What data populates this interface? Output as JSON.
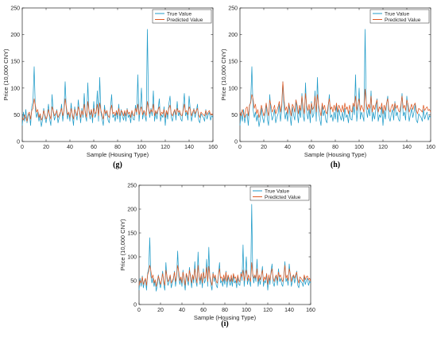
{
  "chart_data": [
    {
      "type": "line",
      "panel_label": "(g)",
      "xlabel": "Sample (Housing Type)",
      "ylabel": "Price (10,000 CNY)",
      "xlim": [
        0,
        160
      ],
      "ylim": [
        0,
        250
      ],
      "xticks": [
        0,
        20,
        40,
        60,
        80,
        100,
        120,
        140,
        160
      ],
      "yticks": [
        0,
        50,
        100,
        150,
        200,
        250
      ],
      "legend_position": "top-right",
      "series": [
        {
          "name": "True Value",
          "color": "#1f9bc8",
          "values": [
            30,
            55,
            38,
            60,
            35,
            48,
            52,
            30,
            65,
            75,
            140,
            60,
            45,
            55,
            38,
            50,
            28,
            40,
            62,
            45,
            35,
            50,
            70,
            42,
            30,
            88,
            55,
            40,
            48,
            60,
            35,
            45,
            52,
            70,
            38,
            58,
            112,
            60,
            42,
            55,
            38,
            72,
            48,
            30,
            65,
            50,
            40,
            78,
            55,
            35,
            62,
            45,
            90,
            48,
            38,
            110,
            55,
            42,
            60,
            35,
            75,
            45,
            52,
            95,
            38,
            120,
            55,
            42,
            30,
            68,
            48,
            58,
            40,
            35,
            62,
            88,
            45,
            50,
            38,
            55,
            42,
            70,
            36,
            60,
            48,
            40,
            55,
            38,
            62,
            45,
            50,
            35,
            58,
            42,
            40,
            68,
            50,
            125,
            38,
            60,
            100,
            42,
            55,
            48,
            38,
            210,
            60,
            45,
            62,
            48,
            95,
            38,
            55,
            42,
            60,
            80,
            38,
            50,
            45,
            65,
            30,
            58,
            42,
            70,
            85,
            45,
            38,
            52,
            60,
            40,
            75,
            48,
            55,
            42,
            38,
            62,
            90,
            48,
            55,
            40,
            85,
            60,
            38,
            50,
            62,
            45,
            55,
            70,
            40,
            35,
            52,
            48,
            45,
            38,
            60,
            42,
            50,
            55,
            40,
            48,
            45
          ]
        },
        {
          "name": "Predicted Value",
          "color": "#e05a24",
          "values": [
            45,
            40,
            50,
            45,
            38,
            52,
            55,
            42,
            58,
            62,
            80,
            68,
            55,
            60,
            45,
            52,
            40,
            45,
            58,
            50,
            42,
            48,
            60,
            50,
            42,
            65,
            58,
            48,
            52,
            58,
            45,
            50,
            55,
            62,
            48,
            58,
            80,
            65,
            50,
            55,
            45,
            62,
            52,
            42,
            60,
            55,
            48,
            65,
            58,
            45,
            58,
            50,
            70,
            55,
            45,
            75,
            58,
            50,
            60,
            45,
            62,
            52,
            55,
            70,
            48,
            72,
            58,
            50,
            42,
            60,
            52,
            58,
            48,
            45,
            58,
            68,
            52,
            55,
            48,
            58,
            50,
            62,
            48,
            58,
            55,
            48,
            58,
            48,
            60,
            52,
            55,
            45,
            58,
            50,
            48,
            62,
            55,
            70,
            50,
            60,
            65,
            50,
            58,
            55,
            48,
            75,
            62,
            52,
            60,
            55,
            70,
            48,
            58,
            52,
            60,
            65,
            48,
            55,
            52,
            60,
            45,
            58,
            50,
            62,
            68,
            52,
            48,
            55,
            60,
            50,
            62,
            55,
            58,
            50,
            48,
            58,
            70,
            55,
            58,
            50,
            65,
            60,
            48,
            55,
            60,
            52,
            58,
            62,
            50,
            45,
            55,
            52,
            50,
            48,
            58,
            50,
            55,
            58,
            50,
            52,
            50
          ]
        }
      ]
    },
    {
      "type": "line",
      "panel_label": "(h)",
      "xlabel": "Sample (Housing Type)",
      "ylabel": "Price (10,000 CNY)",
      "xlim": [
        0,
        160
      ],
      "ylim": [
        0,
        250
      ],
      "xticks": [
        0,
        20,
        40,
        60,
        80,
        100,
        120,
        140,
        160
      ],
      "yticks": [
        0,
        50,
        100,
        150,
        200,
        250
      ],
      "legend_position": "top-right",
      "series": [
        {
          "name": "True Value",
          "color": "#1f9bc8",
          "values": [
            30,
            55,
            38,
            60,
            35,
            48,
            52,
            30,
            65,
            75,
            140,
            60,
            45,
            55,
            38,
            50,
            28,
            40,
            62,
            45,
            35,
            50,
            70,
            42,
            30,
            88,
            55,
            40,
            48,
            60,
            35,
            45,
            52,
            70,
            38,
            58,
            112,
            60,
            42,
            55,
            38,
            72,
            48,
            30,
            65,
            50,
            40,
            78,
            55,
            35,
            62,
            45,
            90,
            48,
            38,
            110,
            55,
            42,
            60,
            35,
            75,
            45,
            52,
            95,
            38,
            120,
            55,
            42,
            30,
            68,
            48,
            58,
            40,
            35,
            62,
            88,
            45,
            50,
            38,
            55,
            42,
            70,
            36,
            60,
            48,
            40,
            55,
            38,
            62,
            45,
            50,
            35,
            58,
            42,
            40,
            68,
            50,
            125,
            38,
            60,
            100,
            42,
            55,
            48,
            38,
            210,
            60,
            45,
            62,
            48,
            95,
            38,
            55,
            42,
            60,
            80,
            38,
            50,
            45,
            65,
            30,
            58,
            42,
            70,
            85,
            45,
            38,
            52,
            60,
            40,
            75,
            48,
            55,
            42,
            38,
            62,
            90,
            48,
            55,
            40,
            85,
            60,
            38,
            50,
            62,
            45,
            55,
            70,
            40,
            35,
            52,
            48,
            45,
            38,
            60,
            42,
            50,
            55,
            40,
            48,
            45
          ]
        },
        {
          "name": "Predicted Value",
          "color": "#e05a24",
          "values": [
            55,
            48,
            60,
            52,
            45,
            62,
            65,
            48,
            68,
            72,
            88,
            80,
            62,
            70,
            52,
            60,
            45,
            52,
            68,
            58,
            48,
            55,
            72,
            58,
            48,
            78,
            68,
            55,
            60,
            68,
            52,
            58,
            65,
            75,
            55,
            68,
            112,
            78,
            58,
            65,
            52,
            72,
            60,
            48,
            70,
            65,
            55,
            78,
            68,
            52,
            68,
            58,
            85,
            65,
            52,
            90,
            68,
            58,
            70,
            52,
            72,
            60,
            65,
            85,
            55,
            88,
            68,
            58,
            48,
            72,
            60,
            68,
            55,
            52,
            68,
            80,
            60,
            65,
            55,
            68,
            58,
            72,
            55,
            68,
            62,
            55,
            68,
            55,
            72,
            60,
            65,
            52,
            68,
            58,
            55,
            72,
            65,
            85,
            58,
            70,
            80,
            58,
            68,
            62,
            55,
            98,
            72,
            60,
            70,
            62,
            85,
            55,
            68,
            60,
            70,
            78,
            55,
            65,
            60,
            72,
            52,
            68,
            58,
            72,
            80,
            60,
            55,
            65,
            70,
            58,
            72,
            62,
            68,
            58,
            55,
            68,
            85,
            62,
            68,
            58,
            78,
            70,
            55,
            62,
            70,
            60,
            68,
            72,
            58,
            52,
            62,
            60,
            58,
            55,
            68,
            58,
            62,
            65,
            58,
            60,
            55
          ]
        }
      ]
    },
    {
      "type": "line",
      "panel_label": "(i)",
      "xlabel": "Sample (Housing Type)",
      "ylabel": "Price (10,000 CNY)",
      "xlim": [
        0,
        160
      ],
      "ylim": [
        0,
        250
      ],
      "xticks": [
        0,
        20,
        40,
        60,
        80,
        100,
        120,
        140,
        160
      ],
      "yticks": [
        0,
        50,
        100,
        150,
        200,
        250
      ],
      "legend_position": "top-right",
      "series": [
        {
          "name": "True Value",
          "color": "#1f9bc8",
          "values": [
            30,
            55,
            38,
            60,
            35,
            48,
            52,
            30,
            65,
            75,
            140,
            60,
            45,
            55,
            38,
            50,
            28,
            40,
            62,
            45,
            35,
            50,
            70,
            42,
            30,
            88,
            55,
            40,
            48,
            60,
            35,
            45,
            52,
            70,
            38,
            58,
            112,
            60,
            42,
            55,
            38,
            72,
            48,
            30,
            65,
            50,
            40,
            78,
            55,
            35,
            62,
            45,
            90,
            48,
            38,
            110,
            55,
            42,
            60,
            35,
            75,
            45,
            52,
            95,
            38,
            120,
            55,
            42,
            30,
            68,
            48,
            58,
            40,
            35,
            62,
            88,
            45,
            50,
            38,
            55,
            42,
            70,
            36,
            60,
            48,
            40,
            55,
            38,
            62,
            45,
            50,
            35,
            58,
            42,
            40,
            68,
            50,
            125,
            38,
            60,
            100,
            42,
            55,
            48,
            38,
            210,
            60,
            45,
            62,
            48,
            95,
            38,
            55,
            42,
            60,
            80,
            38,
            50,
            45,
            65,
            30,
            58,
            42,
            70,
            85,
            45,
            38,
            52,
            60,
            40,
            75,
            48,
            55,
            42,
            38,
            62,
            90,
            48,
            55,
            40,
            85,
            60,
            38,
            50,
            62,
            45,
            55,
            70,
            40,
            35,
            52,
            48,
            45,
            38,
            60,
            42,
            50,
            55,
            40,
            48,
            45
          ]
        },
        {
          "name": "Predicted Value",
          "color": "#e05a24",
          "values": [
            40,
            50,
            45,
            58,
            42,
            50,
            55,
            40,
            62,
            70,
            82,
            72,
            55,
            62,
            45,
            52,
            38,
            48,
            60,
            52,
            42,
            50,
            65,
            50,
            40,
            72,
            60,
            48,
            52,
            62,
            45,
            50,
            55,
            68,
            48,
            60,
            82,
            70,
            50,
            58,
            45,
            68,
            55,
            40,
            65,
            58,
            48,
            72,
            60,
            45,
            62,
            52,
            75,
            58,
            45,
            82,
            60,
            50,
            65,
            45,
            68,
            55,
            58,
            78,
            48,
            80,
            60,
            50,
            40,
            65,
            55,
            62,
            48,
            45,
            62,
            75,
            55,
            58,
            48,
            62,
            50,
            68,
            48,
            62,
            55,
            48,
            62,
            48,
            65,
            55,
            58,
            45,
            62,
            50,
            48,
            65,
            58,
            72,
            50,
            62,
            72,
            50,
            62,
            55,
            48,
            88,
            65,
            55,
            62,
            55,
            75,
            48,
            62,
            52,
            62,
            72,
            48,
            58,
            52,
            65,
            42,
            62,
            50,
            65,
            75,
            55,
            48,
            58,
            62,
            50,
            68,
            58,
            62,
            52,
            48,
            62,
            82,
            55,
            62,
            50,
            75,
            65,
            48,
            58,
            62,
            55,
            62,
            68,
            52,
            45,
            58,
            55,
            52,
            48,
            62,
            52,
            58,
            60,
            52,
            55,
            50
          ]
        }
      ]
    }
  ]
}
